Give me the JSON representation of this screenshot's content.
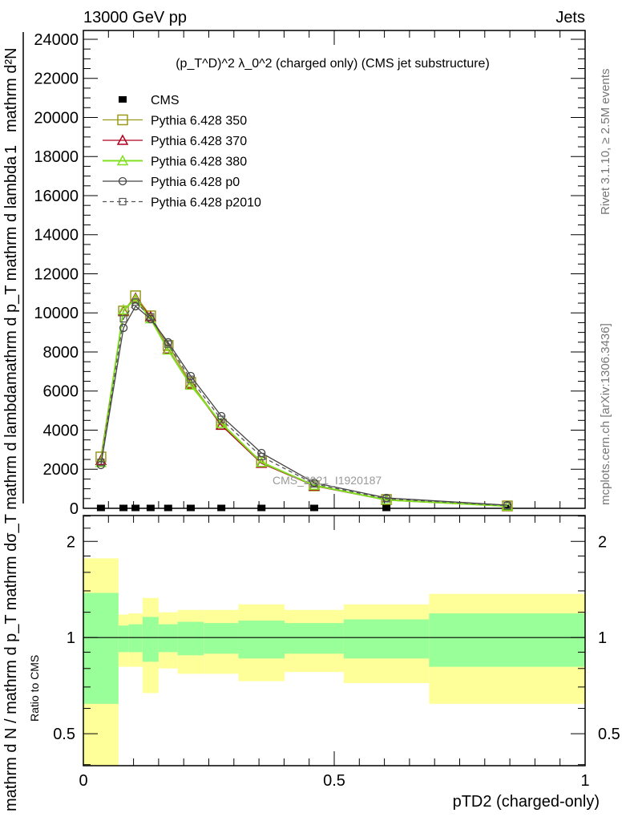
{
  "header": {
    "left": "13000 GeV pp",
    "right": "Jets"
  },
  "side_labels": {
    "rivet": "Rivet 3.1.10, ≥ 2.5M events",
    "mcplots": "mcplots.cern.ch [arXiv:1306.3436]"
  },
  "watermark": "CMS_2021_I1920187",
  "chart_data": [
    {
      "type": "line",
      "title": "(p_T^D)^2 λ_0^2 (charged only) (CMS jet substructure)",
      "title_parts": {
        "pre": "(p",
        "sub": "T",
        "sup": "D",
        "post1": ")",
        "sup2": "2",
        "mid": " λ_0",
        "sup3": "2",
        "post": " (charged only) (CMS jet substructure)"
      },
      "ylabel_a": {
        "num": "mathrm d²N",
        "den": "mathrm d p_T mathrm d lambda",
        "one": "1"
      },
      "ylabel_b": "mathrm d N / mathrm d p_T  mathrm dσ_T  mathrm d lambda",
      "xlim": [
        0,
        1
      ],
      "ylim": [
        0,
        24450
      ],
      "yticks": [
        0,
        2000,
        4000,
        6000,
        8000,
        10000,
        12000,
        14000,
        16000,
        18000,
        20000,
        22000,
        24000
      ],
      "ytick_labels": [
        "0",
        "2000",
        "4000",
        "6000",
        "8000",
        "10000",
        "12000",
        "14000",
        "16000",
        "18000",
        "20000",
        "22000",
        "24000"
      ],
      "x": [
        0.035,
        0.08,
        0.104,
        0.134,
        0.169,
        0.214,
        0.275,
        0.355,
        0.46,
        0.604,
        0.845
      ],
      "series": [
        {
          "name": "CMS",
          "color": "#000000",
          "marker": "filled-square",
          "values": [
            20,
            20,
            20,
            20,
            20,
            20,
            20,
            20,
            20,
            20,
            20
          ]
        },
        {
          "name": "Pythia 6.428 350",
          "color": "#9a9a1a",
          "marker": "square",
          "dash": false,
          "values": [
            2626,
            10094,
            10874,
            9848,
            8330,
            6442,
            4308,
            2380,
            1149,
            451,
            123
          ]
        },
        {
          "name": "Pythia 6.428 370",
          "color": "#b00020",
          "marker": "triangle",
          "dash": false,
          "values": [
            2450,
            10100,
            10750,
            9800,
            8150,
            6350,
            4250,
            2300,
            1150,
            420,
            110
          ]
        },
        {
          "name": "Pythia 6.428 380",
          "color": "#80e020",
          "marker": "triangle",
          "dash": false,
          "values": [
            2350,
            10150,
            10700,
            9700,
            8100,
            6300,
            4350,
            2350,
            1180,
            430,
            115
          ]
        },
        {
          "name": "Pythia 6.428 p0",
          "color": "#444444",
          "marker": "circle",
          "dash": false,
          "values": [
            2216,
            9233,
            10340,
            9684,
            8494,
            6770,
            4719,
            2831,
            1313,
            533,
            164
          ]
        },
        {
          "name": "Pythia 6.428 p2010",
          "color": "#555555",
          "marker": "small-square",
          "dash": true,
          "values": [
            2350,
            9700,
            10550,
            9800,
            8400,
            6600,
            4550,
            2650,
            1250,
            490,
            140
          ]
        }
      ],
      "legend_position": "top-left"
    },
    {
      "type": "area",
      "ylabel": "Ratio to CMS",
      "xlabel": "pTD2 (charged-only)",
      "yscale": "log",
      "ylim": [
        0.397,
        2.41
      ],
      "xlim": [
        0,
        1
      ],
      "yticks": [
        0.5,
        1,
        2
      ],
      "ytick_labels": [
        "0.5",
        "1",
        "2"
      ],
      "xticks": [
        0,
        0.5,
        1
      ],
      "xtick_labels": [
        "0",
        "0.5",
        "1"
      ],
      "bin_edges": [
        0,
        0.07,
        0.09,
        0.118,
        0.15,
        0.188,
        0.24,
        0.309,
        0.401,
        0.519,
        0.689,
        1.0
      ],
      "stat_band": {
        "color": "#99ff99",
        "up": [
          1.38,
          1.09,
          1.1,
          1.16,
          1.1,
          1.12,
          1.11,
          1.13,
          1.11,
          1.14,
          1.19
        ],
        "down": [
          0.62,
          0.9,
          0.9,
          0.84,
          0.9,
          0.88,
          0.89,
          0.86,
          0.89,
          0.86,
          0.81
        ]
      },
      "total_band": {
        "color": "#ffff99",
        "up": [
          1.77,
          1.18,
          1.19,
          1.33,
          1.2,
          1.22,
          1.22,
          1.27,
          1.22,
          1.27,
          1.37
        ],
        "down": [
          0.3,
          0.81,
          0.81,
          0.67,
          0.8,
          0.77,
          0.77,
          0.73,
          0.78,
          0.72,
          0.62
        ]
      }
    }
  ]
}
